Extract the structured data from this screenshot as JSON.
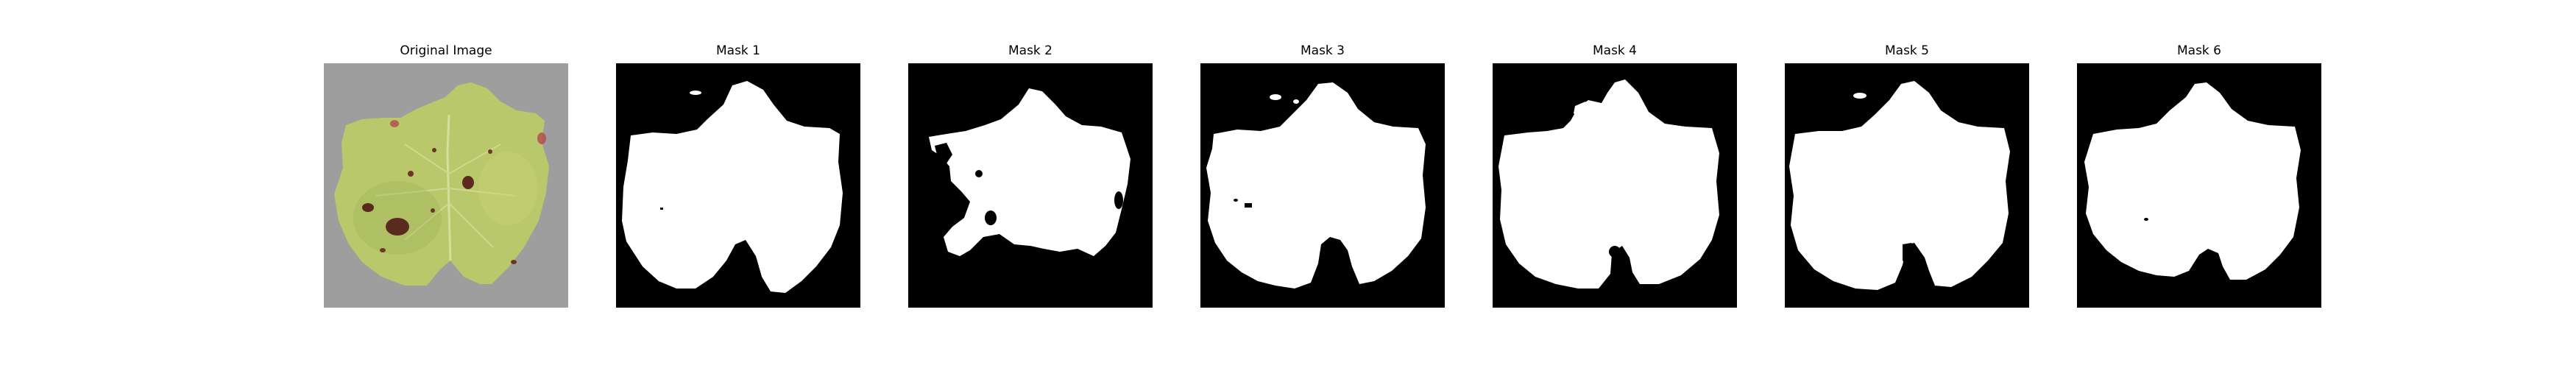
{
  "panels": [
    {
      "title": "Original Image",
      "kind": "photo"
    },
    {
      "title": "Mask 1",
      "kind": "mask"
    },
    {
      "title": "Mask 2",
      "kind": "mask"
    },
    {
      "title": "Mask 3",
      "kind": "mask"
    },
    {
      "title": "Mask 4",
      "kind": "mask"
    },
    {
      "title": "Mask 5",
      "kind": "mask"
    },
    {
      "title": "Mask 6",
      "kind": "mask"
    }
  ],
  "colors": {
    "mask_background": "#000000",
    "mask_foreground": "#ffffff",
    "photo_background": "#9a9a9a",
    "leaf": "#b9c86a",
    "leaf_shade": "#9fb35a",
    "lesion": "#5a2a1e"
  }
}
